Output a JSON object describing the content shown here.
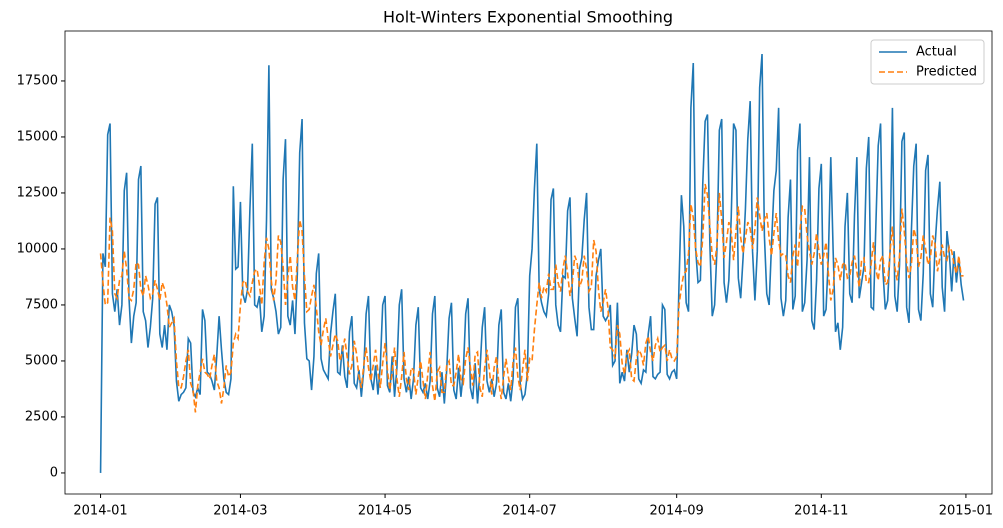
{
  "chart_data": {
    "type": "line",
    "title": "Holt-Winters Exponential Smoothing",
    "legend": "upper right",
    "xlim": [
      -15,
      376
    ],
    "xticks": [
      {
        "value": 0,
        "label": "2014-01"
      },
      {
        "value": 59,
        "label": "2014-03"
      },
      {
        "value": 120,
        "label": "2014-05"
      },
      {
        "value": 181,
        "label": "2014-07"
      },
      {
        "value": 243,
        "label": "2014-09"
      },
      {
        "value": 304,
        "label": "2014-11"
      },
      {
        "value": 365,
        "label": "2015-01"
      }
    ],
    "ylim": [
      -940,
      19730
    ],
    "yticks": [
      0,
      2500,
      5000,
      7500,
      10000,
      12500,
      15000,
      17500
    ],
    "x": [
      0,
      1,
      2,
      3,
      4,
      5,
      6,
      7,
      8,
      9,
      10,
      11,
      12,
      13,
      14,
      15,
      16,
      17,
      18,
      19,
      20,
      21,
      22,
      23,
      24,
      25,
      26,
      27,
      28,
      29,
      30,
      31,
      32,
      33,
      34,
      35,
      36,
      37,
      38,
      39,
      40,
      41,
      42,
      43,
      44,
      45,
      46,
      47,
      48,
      49,
      50,
      51,
      52,
      53,
      54,
      55,
      56,
      57,
      58,
      59,
      60,
      61,
      62,
      63,
      64,
      65,
      66,
      67,
      68,
      69,
      70,
      71,
      72,
      73,
      74,
      75,
      76,
      77,
      78,
      79,
      80,
      81,
      82,
      83,
      84,
      85,
      86,
      87,
      88,
      89,
      90,
      91,
      92,
      93,
      94,
      95,
      96,
      97,
      98,
      99,
      100,
      101,
      102,
      103,
      104,
      105,
      106,
      107,
      108,
      109,
      110,
      111,
      112,
      113,
      114,
      115,
      116,
      117,
      118,
      119,
      120,
      121,
      122,
      123,
      124,
      125,
      126,
      127,
      128,
      129,
      130,
      131,
      132,
      133,
      134,
      135,
      136,
      137,
      138,
      139,
      140,
      141,
      142,
      143,
      144,
      145,
      146,
      147,
      148,
      149,
      150,
      151,
      152,
      153,
      154,
      155,
      156,
      157,
      158,
      159,
      160,
      161,
      162,
      163,
      164,
      165,
      166,
      167,
      168,
      169,
      170,
      171,
      172,
      173,
      174,
      175,
      176,
      177,
      178,
      179,
      180,
      181,
      182,
      183,
      184,
      185,
      186,
      187,
      188,
      189,
      190,
      191,
      192,
      193,
      194,
      195,
      196,
      197,
      198,
      199,
      200,
      201,
      202,
      203,
      204,
      205,
      206,
      207,
      208,
      209,
      210,
      211,
      212,
      213,
      214,
      215,
      216,
      217,
      218,
      219,
      220,
      221,
      222,
      223,
      224,
      225,
      226,
      227,
      228,
      229,
      230,
      231,
      232,
      233,
      234,
      235,
      236,
      237,
      238,
      239,
      240,
      241,
      242,
      243,
      244,
      245,
      246,
      247,
      248,
      249,
      250,
      251,
      252,
      253,
      254,
      255,
      256,
      257,
      258,
      259,
      260,
      261,
      262,
      263,
      264,
      265,
      266,
      267,
      268,
      269,
      270,
      271,
      272,
      273,
      274,
      275,
      276,
      277,
      278,
      279,
      280,
      281,
      282,
      283,
      284,
      285,
      286,
      287,
      288,
      289,
      290,
      291,
      292,
      293,
      294,
      295,
      296,
      297,
      298,
      299,
      300,
      301,
      302,
      303,
      304,
      305,
      306,
      307,
      308,
      309,
      310,
      311,
      312,
      313,
      314,
      315,
      316,
      317,
      318,
      319,
      320,
      321,
      322,
      323,
      324,
      325,
      326,
      327,
      328,
      329,
      330,
      331,
      332,
      333,
      334,
      335,
      336,
      337,
      338,
      339,
      340,
      341,
      342,
      343,
      344,
      345,
      346,
      347,
      348,
      349,
      350,
      351,
      352,
      353,
      354,
      355,
      356,
      357,
      358,
      359,
      360,
      361,
      362,
      363,
      364
    ],
    "series": [
      {
        "name": "Actual",
        "color": "#1f77b4",
        "dash": "none",
        "values": [
          0,
          9800,
          9200,
          15100,
          15600,
          8000,
          7200,
          8200,
          6600,
          7500,
          12600,
          13400,
          7800,
          5800,
          7000,
          7600,
          13100,
          13700,
          7200,
          6800,
          5600,
          6500,
          7800,
          12000,
          12300,
          6200,
          5600,
          6600,
          5500,
          7500,
          7200,
          6600,
          4100,
          3200,
          3500,
          3600,
          3800,
          6000,
          5800,
          3600,
          3400,
          3800,
          3500,
          7300,
          6800,
          4500,
          4400,
          4100,
          3700,
          5200,
          7000,
          5500,
          4200,
          3600,
          3500,
          4200,
          12800,
          9100,
          9200,
          12100,
          8000,
          7600,
          8200,
          11800,
          14700,
          7500,
          7400,
          7900,
          6300,
          7000,
          11300,
          18200,
          8200,
          7800,
          7200,
          6200,
          6500,
          13100,
          14900,
          7000,
          6600,
          7700,
          6200,
          8900,
          14300,
          15800,
          6700,
          5100,
          5000,
          3700,
          5200,
          8900,
          9800,
          5100,
          4600,
          4400,
          4200,
          6200,
          7200,
          8000,
          4500,
          4400,
          5700,
          4300,
          3800,
          6300,
          7000,
          4000,
          3800,
          4600,
          3400,
          4600,
          7100,
          7900,
          4200,
          3700,
          4800,
          3500,
          4800,
          7500,
          7900,
          3900,
          3600,
          5200,
          3400,
          4700,
          7500,
          8200,
          4200,
          3600,
          4300,
          3300,
          4200,
          6600,
          7400,
          3800,
          3600,
          4000,
          3300,
          4100,
          7100,
          7900,
          3800,
          3400,
          4500,
          3100,
          4600,
          6900,
          7600,
          3700,
          3300,
          4700,
          3400,
          4500,
          7100,
          7800,
          3800,
          3300,
          4900,
          3100,
          4500,
          6500,
          7400,
          4100,
          3600,
          4200,
          3400,
          4000,
          6600,
          7300,
          3600,
          3300,
          4000,
          3200,
          4200,
          7400,
          7800,
          4000,
          3300,
          3500,
          4400,
          8800,
          10000,
          12700,
          14700,
          8200,
          7600,
          7200,
          7000,
          8000,
          12200,
          12700,
          7500,
          6600,
          6300,
          8800,
          8700,
          11700,
          12300,
          7800,
          6900,
          6100,
          9100,
          9600,
          11300,
          12500,
          7400,
          6400,
          6400,
          8800,
          9500,
          10000,
          7000,
          6800,
          7000,
          7500,
          4800,
          5000,
          7600,
          4000,
          4500,
          4100,
          5500,
          4500,
          5300,
          6600,
          6200,
          4200,
          4000,
          4600,
          4500,
          6200,
          7000,
          4300,
          4200,
          4400,
          4500,
          7500,
          7300,
          4400,
          4200,
          4500,
          4600,
          4200,
          8500,
          12400,
          11000,
          7600,
          7200,
          16300,
          18300,
          10000,
          8500,
          8600,
          12900,
          15700,
          16000,
          10200,
          7000,
          7500,
          10000,
          15300,
          15800,
          8500,
          7600,
          8600,
          11400,
          15600,
          15300,
          8700,
          7800,
          9600,
          11800,
          14900,
          16600,
          9900,
          7700,
          9900,
          17200,
          18700,
          10600,
          8000,
          7500,
          10200,
          12600,
          13500,
          16300,
          7800,
          7000,
          7700,
          11400,
          13100,
          7300,
          7900,
          14400,
          15600,
          7200,
          7600,
          9500,
          14100,
          6800,
          6400,
          8600,
          12700,
          13800,
          7000,
          7300,
          9700,
          14100,
          9900,
          6300,
          6700,
          5500,
          6500,
          11000,
          12500,
          8000,
          7600,
          11500,
          14100,
          7800,
          8500,
          9200,
          13600,
          15000,
          7400,
          7300,
          11000,
          14600,
          15600,
          9000,
          7300,
          7700,
          9900,
          16300,
          7900,
          7200,
          9300,
          14800,
          15200,
          7400,
          6700,
          10800,
          13700,
          14700,
          7300,
          6800,
          8900,
          13500,
          14200,
          8000,
          7400,
          10200,
          11800,
          13000,
          8300,
          7200,
          10800,
          9800,
          8100,
          9900,
          8500,
          9600,
          8400,
          7700
        ]
      },
      {
        "name": "Predicted",
        "color": "#ff7f0e",
        "dash": "6 3",
        "values": [
          9800,
          8500,
          7500,
          7600,
          11400,
          10800,
          8000,
          7800,
          8600,
          8800,
          9900,
          9100,
          7800,
          7700,
          8200,
          9400,
          9300,
          8200,
          7900,
          8800,
          8400,
          7800,
          8000,
          8600,
          8200,
          7700,
          8500,
          8200,
          7500,
          6500,
          6700,
          6900,
          5000,
          3800,
          3800,
          4300,
          5000,
          5500,
          4000,
          3700,
          2700,
          3900,
          4500,
          5100,
          4500,
          4400,
          4200,
          4800,
          5300,
          4100,
          3800,
          3100,
          3800,
          4800,
          4300,
          4500,
          5800,
          6200,
          6000,
          7500,
          8500,
          8600,
          8100,
          7900,
          8500,
          9000,
          9100,
          8400,
          7500,
          9400,
          10500,
          10000,
          8600,
          7700,
          8600,
          10600,
          10300,
          9200,
          7500,
          8700,
          9700,
          8300,
          7700,
          9600,
          11300,
          10800,
          8800,
          7200,
          7300,
          7900,
          8400,
          7400,
          6300,
          5700,
          6400,
          6900,
          6000,
          5200,
          5700,
          6200,
          5900,
          5000,
          5400,
          6000,
          5200,
          4400,
          4800,
          5900,
          5300,
          4300,
          3800,
          4800,
          5600,
          4700,
          4100,
          4800,
          5500,
          4500,
          3800,
          4900,
          5800,
          4600,
          3700,
          4500,
          5600,
          4200,
          3400,
          4300,
          5400,
          4200,
          3700,
          4700,
          4600,
          3500,
          4300,
          5000,
          4100,
          3300,
          4400,
          5400,
          3900,
          3200,
          4500,
          4700,
          3600,
          3600,
          4800,
          5000,
          3900,
          3900,
          4500,
          5300,
          4200,
          4000,
          5100,
          5600,
          4700,
          3900,
          5300,
          5400,
          3800,
          3400,
          4700,
          5500,
          4600,
          3500,
          4700,
          5200,
          4000,
          3300,
          4300,
          5100,
          4300,
          3700,
          5000,
          5600,
          4300,
          3700,
          4600,
          5500,
          4100,
          5100,
          5000,
          6400,
          7500,
          8500,
          7800,
          8300,
          8100,
          8900,
          8200,
          8200,
          9300,
          8500,
          8100,
          9100,
          9700,
          8900,
          7900,
          8500,
          9700,
          9400,
          8300,
          8600,
          9700,
          9100,
          8100,
          8300,
          10400,
          9900,
          8200,
          7200,
          7600,
          8200,
          7400,
          5600,
          5500,
          5100,
          6600,
          6200,
          4900,
          4400,
          5300,
          5500,
          4200,
          4100,
          5100,
          5500,
          5300,
          4800,
          5800,
          6100,
          5400,
          5000,
          5700,
          6000,
          5400,
          5600,
          5700,
          5000,
          5500,
          5100,
          5000,
          5200,
          7500,
          8300,
          8900,
          9000,
          9800,
          12000,
          11400,
          10000,
          9400,
          9200,
          10500,
          12900,
          12400,
          11000,
          9700,
          9300,
          10200,
          12500,
          11300,
          9600,
          10300,
          11200,
          10800,
          9500,
          10800,
          11900,
          10500,
          9800,
          10500,
          11200,
          10900,
          10000,
          10900,
          12300,
          11500,
          10800,
          11300,
          11600,
          10500,
          9700,
          10700,
          11600,
          10400,
          9700,
          9800,
          9700,
          8800,
          8500,
          9700,
          10200,
          9200,
          10800,
          11900,
          11800,
          10600,
          9900,
          9300,
          9800,
          10700,
          9900,
          9300,
          9700,
          10300,
          8900,
          7700,
          8200,
          9600,
          9300,
          8600,
          9300,
          9400,
          8700,
          8800,
          9400,
          9700,
          9000,
          8300,
          9500,
          9600,
          8500,
          8500,
          9300,
          10300,
          9100,
          8600,
          9500,
          9700,
          8400,
          8500,
          9900,
          11000,
          9200,
          8600,
          9700,
          11800,
          10800,
          9400,
          8700,
          9300,
          10900,
          10500,
          9200,
          9600,
          10600,
          10000,
          9300,
          9600,
          10600,
          10200,
          9000,
          9600,
          10200,
          9600,
          9500,
          10100,
          9900,
          9300,
          8900,
          9700,
          8800,
          8800
        ]
      }
    ]
  }
}
